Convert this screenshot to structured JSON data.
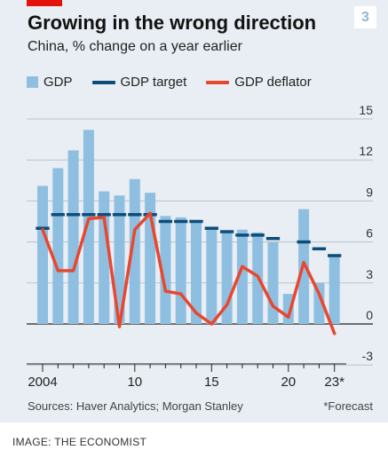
{
  "header": {
    "title": "Growing in the wrong direction",
    "subtitle": "China, % change on a year earlier",
    "badge": "3"
  },
  "legend": [
    {
      "label": "GDP",
      "kind": "bar",
      "color": "#8fbfe0"
    },
    {
      "label": "GDP target",
      "kind": "line",
      "color": "#0d4d7a"
    },
    {
      "label": "GDP deflator",
      "kind": "line",
      "color": "#e8472f"
    }
  ],
  "footer": {
    "sources": "Sources: Haver Analytics; Morgan Stanley",
    "forecast_note": "*Forecast"
  },
  "credit": "IMAGE: THE ECONOMIST",
  "chart_data": {
    "type": "bar",
    "title": "Growing in the wrong direction",
    "subtitle": "China, % change on a year earlier",
    "x": [
      2004,
      2005,
      2006,
      2007,
      2008,
      2009,
      2010,
      2011,
      2012,
      2013,
      2014,
      2015,
      2016,
      2017,
      2018,
      2019,
      2020,
      2021,
      2022,
      2023
    ],
    "ylim": [
      -3,
      15
    ],
    "yticks": [
      15,
      12,
      9,
      6,
      3,
      0,
      -3
    ],
    "xtick_labels": [
      {
        "x": 2004,
        "label": "2004"
      },
      {
        "x": 2010,
        "label": "10"
      },
      {
        "x": 2015,
        "label": "15"
      },
      {
        "x": 2020,
        "label": "20"
      },
      {
        "x": 2023,
        "label": "23*"
      }
    ],
    "series": [
      {
        "name": "GDP",
        "type": "bar",
        "values": [
          10.1,
          11.4,
          12.7,
          14.2,
          9.7,
          9.4,
          10.6,
          9.6,
          7.9,
          7.8,
          7.4,
          7.0,
          6.8,
          6.9,
          6.7,
          6.0,
          2.2,
          8.4,
          3.0,
          5.0
        ]
      },
      {
        "name": "GDP target",
        "type": "step",
        "values": [
          7,
          8,
          8,
          8,
          8,
          8,
          8,
          8,
          7.5,
          7.5,
          7.5,
          7,
          6.75,
          6.5,
          6.5,
          6.25,
          null,
          6,
          5.5,
          5
        ]
      },
      {
        "name": "GDP deflator",
        "type": "line",
        "values": [
          6.9,
          3.9,
          3.9,
          7.7,
          7.8,
          -0.2,
          6.9,
          8.1,
          2.4,
          2.2,
          0.8,
          0.0,
          1.4,
          4.2,
          3.5,
          1.3,
          0.5,
          4.5,
          2.2,
          -0.7
        ]
      }
    ]
  }
}
